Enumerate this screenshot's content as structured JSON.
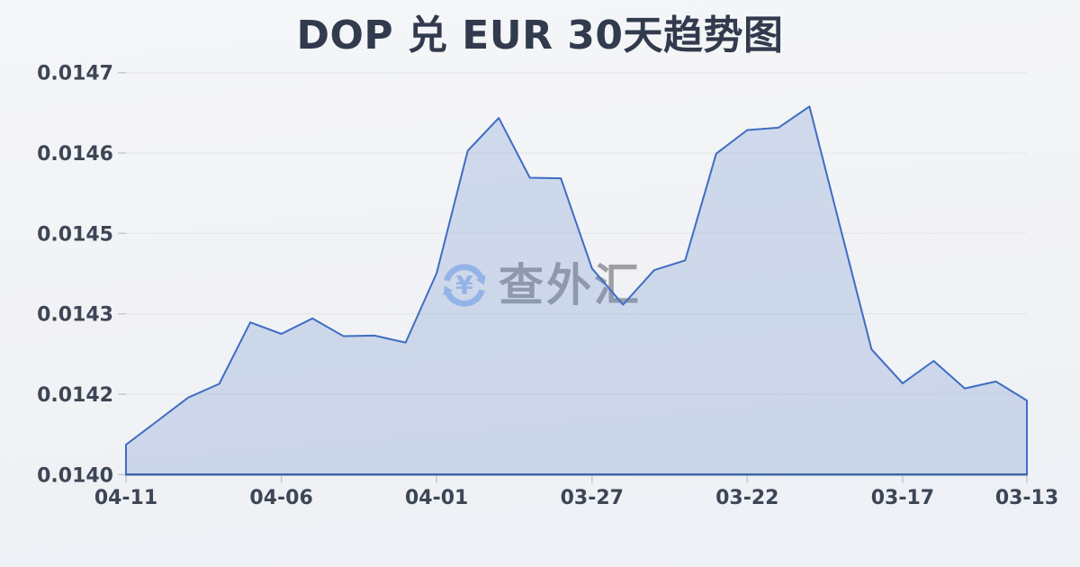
{
  "title": "DOP 兑 EUR 30天趋势图",
  "watermark": {
    "text": "查外汇",
    "currency_symbol": "¥",
    "icon": "currency-exchange-refresh-icon"
  },
  "colors": {
    "line": "#3e6dc3",
    "fill": "rgba(100,136,204,0.25)",
    "baseline": "#3f67a6",
    "grid": "#e2e4e8",
    "tick": "#c6c9cf",
    "axis_label": "#3d4655",
    "title": "#323b4d",
    "watermark_text": "#95979c",
    "watermark_icon": "#a5c3f1",
    "background_top": "#f5f6f8",
    "background_bottom": "#edf0f5"
  },
  "chart_data": {
    "type": "area",
    "title": "DOP 兑 EUR 30天趋势图",
    "x": [
      "04-11",
      "04-10",
      "04-09",
      "04-08",
      "04-07",
      "04-06",
      "04-05",
      "04-04",
      "04-03",
      "04-02",
      "04-01",
      "03-31",
      "03-30",
      "03-29",
      "03-28",
      "03-27",
      "03-26",
      "03-25",
      "03-24",
      "03-23",
      "03-22",
      "03-21",
      "03-20",
      "03-19",
      "03-18",
      "03-17",
      "03-16",
      "03-15",
      "03-14",
      "03-13"
    ],
    "values": [
      0.014092,
      0.014133,
      0.014174,
      0.014198,
      0.014305,
      0.014285,
      0.014312,
      0.014281,
      0.014282,
      0.01427,
      0.014391,
      0.014604,
      0.014661,
      0.014557,
      0.014556,
      0.014399,
      0.014336,
      0.014396,
      0.014413,
      0.014599,
      0.01464,
      0.014644,
      0.014681,
      0.014469,
      0.014258,
      0.014199,
      0.014238,
      0.01419,
      0.014202,
      0.014169
    ],
    "xlabel": "",
    "ylabel": "",
    "xtick_labels": [
      "04-11",
      "04-06",
      "04-01",
      "03-27",
      "03-22",
      "03-17",
      "03-13"
    ],
    "xtick_indices": [
      0,
      5,
      10,
      15,
      20,
      25,
      29
    ],
    "yticks": [
      {
        "value": 0.01404,
        "label": "0.0140"
      },
      {
        "value": 0.01418,
        "label": "0.0142"
      },
      {
        "value": 0.01432,
        "label": "0.0143"
      },
      {
        "value": 0.01446,
        "label": "0.0145"
      },
      {
        "value": 0.0146,
        "label": "0.0146"
      },
      {
        "value": 0.01474,
        "label": "0.0147"
      }
    ],
    "ylim": [
      0.01404,
      0.01474
    ],
    "grid": true,
    "legend_position": "none"
  }
}
